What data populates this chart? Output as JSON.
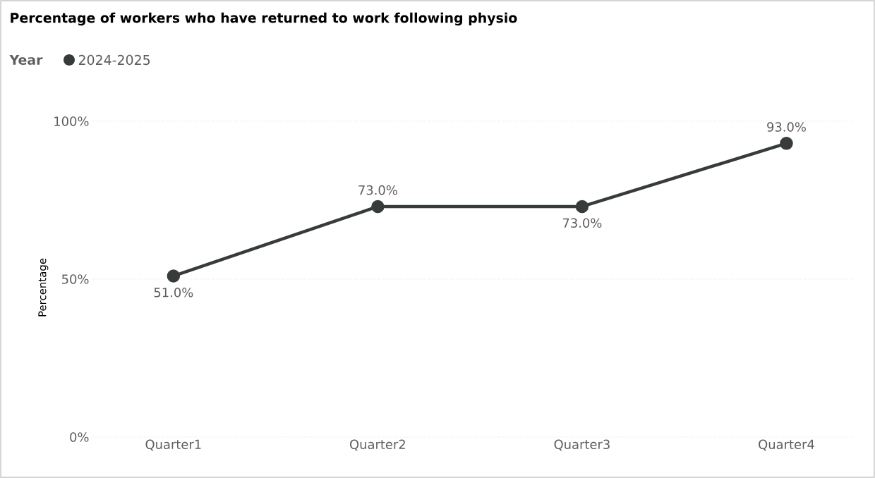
{
  "chart_data": {
    "type": "line",
    "title": "Percentage of workers who have returned to work following physio",
    "ylabel": "Percentage",
    "legend_title": "Year",
    "categories": [
      "Quarter1",
      "Quarter2",
      "Quarter3",
      "Quarter4"
    ],
    "series": [
      {
        "name": "2024-2025",
        "color": "#373b3b",
        "values": [
          51,
          73,
          73,
          93
        ],
        "value_labels": [
          "51.0%",
          "73.0%",
          "73.0%",
          "93.0%"
        ]
      }
    ],
    "ylim": [
      0,
      100
    ],
    "yticks": [
      {
        "value": 0,
        "label": "0%"
      },
      {
        "value": 50,
        "label": "50%"
      },
      {
        "value": 100,
        "label": "100%"
      }
    ],
    "grid": "y",
    "legend": "top left",
    "marker": "circle",
    "line_style": "solid"
  }
}
